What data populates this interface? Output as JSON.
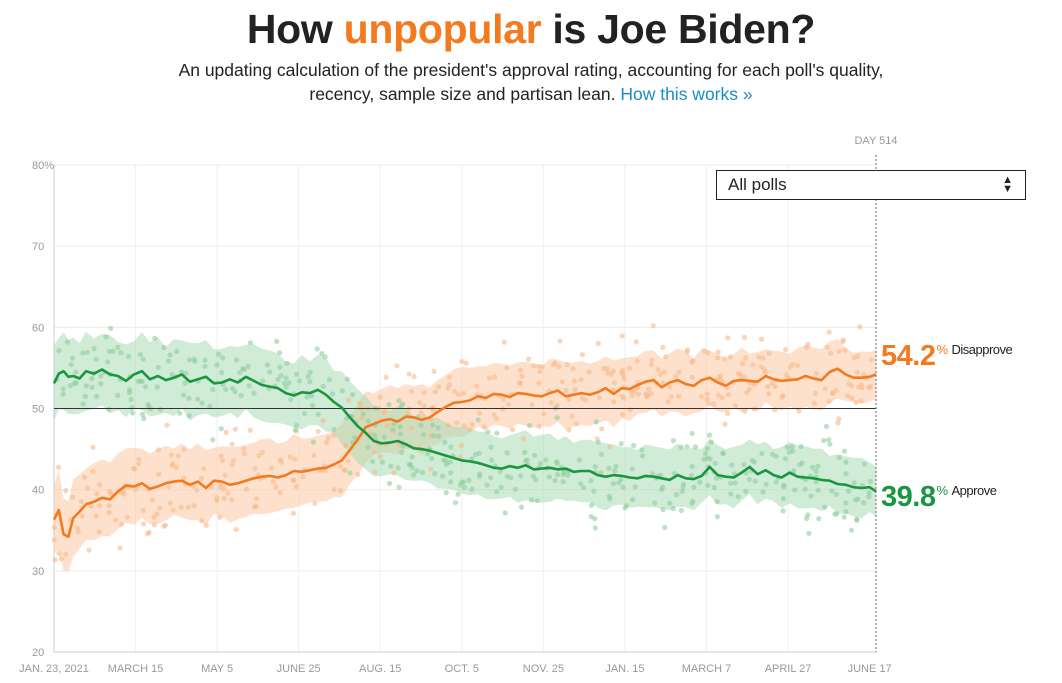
{
  "header": {
    "title_pre": "How ",
    "title_highlight": "unpopular",
    "title_post": " is Joe Biden?",
    "subtitle_line1": "An updating calculation of the president's approval rating, accounting for each poll's quality,",
    "subtitle_line2": "recency, sample size and partisan lean.",
    "link_label": "How this works »"
  },
  "controls": {
    "poll_filter": "All polls"
  },
  "current": {
    "day_label": "DAY 514",
    "disapprove_value": "54.2",
    "disapprove_label": "Disapprove",
    "approve_value": "39.8",
    "approve_label": "Approve",
    "pct_symbol": "%"
  },
  "colors": {
    "approve": "#1a9641",
    "disapprove": "#f47a1f"
  },
  "chart_data": {
    "type": "line",
    "title": "How unpopular is Joe Biden?",
    "x_unit": "days since Jan. 23, 2021",
    "xlim": [
      0,
      514
    ],
    "ylim": [
      20,
      80
    ],
    "y_ticks": [
      {
        "value": 80,
        "label": "80%"
      },
      {
        "value": 70,
        "label": "70"
      },
      {
        "value": 60,
        "label": "60"
      },
      {
        "value": 50,
        "label": "50"
      },
      {
        "value": 40,
        "label": "40"
      },
      {
        "value": 30,
        "label": "30"
      },
      {
        "value": 20,
        "label": "20"
      }
    ],
    "x_ticks": [
      {
        "day": 0,
        "label": "JAN. 23, 2021"
      },
      {
        "day": 51,
        "label": "MARCH 15"
      },
      {
        "day": 102,
        "label": "MAY 5"
      },
      {
        "day": 153,
        "label": "JUNE 25"
      },
      {
        "day": 204,
        "label": "AUG. 15"
      },
      {
        "day": 255,
        "label": "OCT. 5"
      },
      {
        "day": 306,
        "label": "NOV. 25"
      },
      {
        "day": 357,
        "label": "JAN. 15"
      },
      {
        "day": 408,
        "label": "MARCH 7"
      },
      {
        "day": 459,
        "label": "APRIL 27"
      },
      {
        "day": 510,
        "label": "JUNE 17"
      }
    ],
    "reference_line": 50,
    "series": [
      {
        "name": "Disapprove",
        "color": "#f47a1f",
        "x": [
          0,
          3,
          6,
          9,
          12,
          16,
          20,
          25,
          30,
          35,
          40,
          45,
          50,
          55,
          60,
          65,
          70,
          75,
          80,
          85,
          90,
          95,
          100,
          105,
          110,
          115,
          120,
          125,
          130,
          135,
          140,
          145,
          150,
          155,
          160,
          165,
          170,
          175,
          180,
          185,
          190,
          195,
          200,
          205,
          210,
          215,
          220,
          225,
          230,
          235,
          240,
          245,
          250,
          255,
          260,
          265,
          270,
          275,
          280,
          285,
          290,
          295,
          300,
          305,
          310,
          315,
          320,
          325,
          330,
          335,
          340,
          345,
          350,
          355,
          360,
          365,
          370,
          375,
          380,
          385,
          390,
          395,
          400,
          405,
          410,
          415,
          420,
          425,
          430,
          435,
          440,
          445,
          450,
          455,
          460,
          465,
          470,
          475,
          480,
          485,
          490,
          495,
          500,
          505,
          510,
          514
        ],
        "values": [
          36.3,
          37.5,
          34.5,
          34.2,
          36.5,
          37.3,
          38.2,
          38.5,
          39.0,
          38.8,
          39.8,
          40.5,
          40.4,
          40.8,
          40.1,
          40.4,
          40.8,
          41.0,
          41.1,
          40.6,
          41.0,
          40.2,
          41.1,
          41.0,
          40.6,
          40.8,
          41.1,
          41.4,
          41.6,
          41.7,
          41.5,
          41.8,
          42.3,
          42.2,
          42.4,
          42.6,
          42.7,
          43.1,
          43.6,
          44.9,
          46.2,
          47.7,
          48.1,
          48.5,
          48.7,
          48.4,
          49.0,
          48.9,
          48.6,
          48.9,
          49.6,
          50.2,
          50.7,
          50.8,
          51.0,
          51.5,
          51.3,
          51.8,
          51.7,
          51.4,
          51.9,
          51.8,
          51.6,
          51.5,
          51.9,
          52.2,
          51.5,
          51.7,
          51.9,
          51.7,
          52.0,
          52.5,
          51.8,
          52.5,
          52.4,
          52.9,
          53.3,
          53.5,
          52.6,
          53.2,
          53.5,
          53.0,
          52.8,
          53.5,
          53.8,
          53.2,
          52.8,
          53.4,
          53.5,
          53.4,
          53.3,
          54.0,
          53.6,
          53.4,
          53.5,
          53.6,
          54.0,
          53.7,
          53.5,
          54.5,
          54.9,
          54.2,
          53.8,
          53.8,
          53.9,
          54.2
        ]
      },
      {
        "name": "Approve",
        "color": "#1a9641",
        "x": [
          0,
          3,
          6,
          9,
          12,
          16,
          20,
          25,
          30,
          35,
          40,
          45,
          50,
          55,
          60,
          65,
          70,
          75,
          80,
          85,
          90,
          95,
          100,
          105,
          110,
          115,
          120,
          125,
          130,
          135,
          140,
          145,
          150,
          155,
          160,
          165,
          170,
          175,
          180,
          185,
          190,
          195,
          200,
          205,
          210,
          215,
          220,
          225,
          230,
          235,
          240,
          245,
          250,
          255,
          260,
          265,
          270,
          275,
          280,
          285,
          290,
          295,
          300,
          305,
          310,
          315,
          320,
          325,
          330,
          335,
          340,
          345,
          350,
          355,
          360,
          365,
          370,
          375,
          380,
          385,
          390,
          395,
          400,
          405,
          410,
          415,
          420,
          425,
          430,
          435,
          440,
          445,
          450,
          455,
          460,
          465,
          470,
          475,
          480,
          485,
          490,
          495,
          500,
          505,
          510,
          514
        ],
        "values": [
          53.1,
          54.3,
          54.6,
          53.9,
          54.0,
          53.7,
          54.6,
          54.3,
          54.8,
          54.2,
          54.0,
          53.4,
          54.2,
          54.6,
          53.6,
          54.0,
          53.5,
          53.8,
          54.2,
          53.3,
          53.6,
          53.9,
          53.1,
          53.2,
          53.6,
          53.2,
          53.9,
          53.4,
          52.9,
          52.7,
          52.5,
          51.9,
          51.6,
          52.0,
          51.9,
          52.3,
          51.7,
          50.8,
          50.1,
          48.9,
          47.8,
          47.0,
          46.0,
          45.7,
          45.8,
          46.0,
          45.6,
          45.1,
          45.0,
          44.8,
          44.5,
          44.2,
          43.9,
          43.6,
          43.5,
          43.3,
          43.0,
          42.7,
          42.6,
          42.9,
          42.7,
          43.0,
          42.5,
          42.6,
          42.7,
          42.5,
          42.6,
          42.2,
          42.3,
          42.3,
          41.8,
          41.6,
          41.8,
          41.7,
          41.5,
          41.4,
          41.7,
          41.6,
          41.4,
          41.2,
          41.8,
          41.4,
          41.3,
          41.7,
          42.8,
          41.8,
          41.6,
          41.5,
          42.1,
          42.8,
          41.9,
          42.4,
          41.8,
          41.5,
          42.1,
          41.6,
          41.5,
          41.4,
          41.2,
          41.1,
          40.7,
          40.6,
          40.3,
          40.2,
          40.3,
          39.8
        ]
      }
    ]
  }
}
